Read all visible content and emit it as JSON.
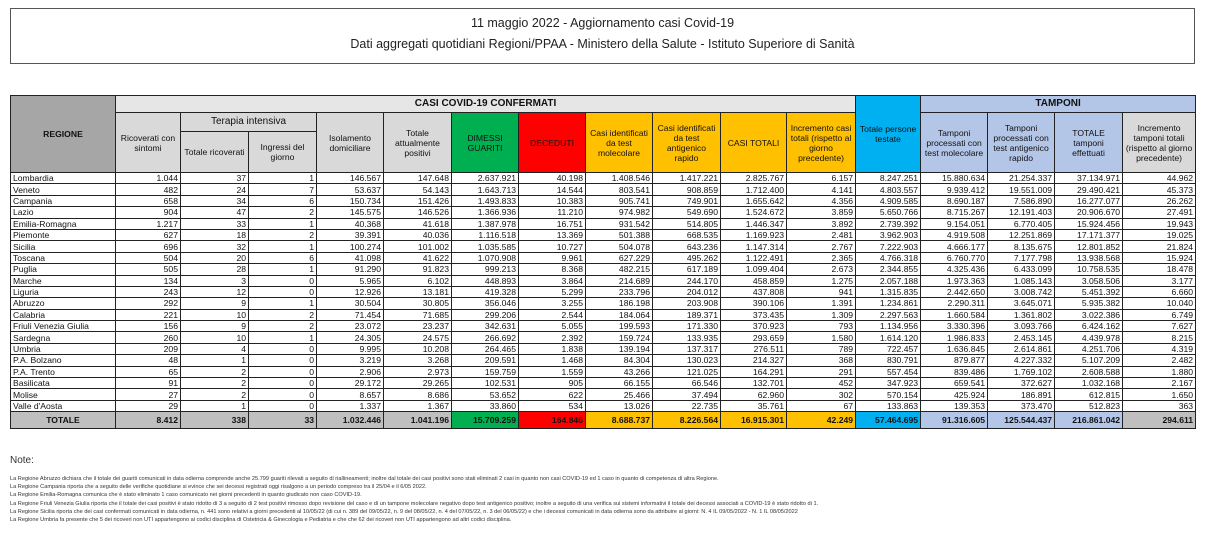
{
  "title": "11 maggio 2022 - Aggiornamento casi Covid-19",
  "subtitle": "Dati aggregati quotidiani Regioni/PPAA - Ministero della Salute - Istituto Superiore di Sanità",
  "headers": {
    "regione": "REGIONE",
    "casi_band": "CASI COVID-19 CONFERMATI",
    "tamponi_band": "TAMPONI",
    "ricoverati": "Ricoverati con sintomi",
    "terapia": "Terapia intensiva",
    "totale_ricoverati": "Totale ricoverati",
    "ingressi": "Ingressi del giorno",
    "isolamento": "Isolamento domiciliare",
    "totale_positivi": "Totale attualmente positivi",
    "dimessi": "DIMESSI GUARITI",
    "deceduti": "DECEDUTI",
    "casi_molecolare": "Casi identificati da test molecolare",
    "casi_antigenico": "Casi identificati da test antigenico rapido",
    "casi_totali": "CASI TOTALI",
    "incremento_casi": "Incremento casi totali (rispetto al giorno precedente)",
    "persone_testate": "Totale persone testate",
    "tamponi_molecolare": "Tamponi processati con test molecolare",
    "tamponi_antigenico": "Tamponi processati con test antigenico rapido",
    "totale_tamponi": "TOTALE tamponi effettuati",
    "incremento_tamponi": "Incremento tamponi totali (rispetto al giorno precedente)"
  },
  "colors": {
    "dimessi": "#00b050",
    "deceduti": "#ff0000",
    "casi": "#ffc000",
    "persone": "#00b0f0",
    "tamponi": "#b4c6e7"
  },
  "rows": [
    [
      "Lombardia",
      "1.044",
      "37",
      "1",
      "146.567",
      "147.648",
      "2.637.921",
      "40.198",
      "1.408.546",
      "1.417.221",
      "2.825.767",
      "6.157",
      "8.247.251",
      "15.880.634",
      "21.254.337",
      "37.134.971",
      "44.962"
    ],
    [
      "Veneto",
      "482",
      "24",
      "7",
      "53.637",
      "54.143",
      "1.643.713",
      "14.544",
      "803.541",
      "908.859",
      "1.712.400",
      "4.141",
      "4.803.557",
      "9.939.412",
      "19.551.009",
      "29.490.421",
      "45.373"
    ],
    [
      "Campania",
      "658",
      "34",
      "6",
      "150.734",
      "151.426",
      "1.493.833",
      "10.383",
      "905.741",
      "749.901",
      "1.655.642",
      "4.356",
      "4.909.585",
      "8.690.187",
      "7.586.890",
      "16.277.077",
      "26.262"
    ],
    [
      "Lazio",
      "904",
      "47",
      "2",
      "145.575",
      "146.526",
      "1.366.936",
      "11.210",
      "974.982",
      "549.690",
      "1.524.672",
      "3.859",
      "5.650.766",
      "8.715.267",
      "12.191.403",
      "20.906.670",
      "27.491"
    ],
    [
      "Emilia-Romagna",
      "1.217",
      "33",
      "1",
      "40.368",
      "41.618",
      "1.387.978",
      "16.751",
      "931.542",
      "514.805",
      "1.446.347",
      "3.892",
      "2.739.392",
      "9.154.051",
      "6.770.405",
      "15.924.456",
      "19.943"
    ],
    [
      "Piemonte",
      "627",
      "18",
      "2",
      "39.391",
      "40.036",
      "1.116.518",
      "13.369",
      "501.388",
      "668.535",
      "1.169.923",
      "2.481",
      "3.962.903",
      "4.919.508",
      "12.251.869",
      "17.171.377",
      "19.025"
    ],
    [
      "Sicilia",
      "696",
      "32",
      "1",
      "100.274",
      "101.002",
      "1.035.585",
      "10.727",
      "504.078",
      "643.236",
      "1.147.314",
      "2.767",
      "7.222.903",
      "4.666.177",
      "8.135.675",
      "12.801.852",
      "21.824"
    ],
    [
      "Toscana",
      "504",
      "20",
      "6",
      "41.098",
      "41.622",
      "1.070.908",
      "9.961",
      "627.229",
      "495.262",
      "1.122.491",
      "2.365",
      "4.766.318",
      "6.760.770",
      "7.177.798",
      "13.938.568",
      "15.924"
    ],
    [
      "Puglia",
      "505",
      "28",
      "1",
      "91.290",
      "91.823",
      "999.213",
      "8.368",
      "482.215",
      "617.189",
      "1.099.404",
      "2.673",
      "2.344.855",
      "4.325.436",
      "6.433.099",
      "10.758.535",
      "18.478"
    ],
    [
      "Marche",
      "134",
      "3",
      "0",
      "5.965",
      "6.102",
      "448.893",
      "3.864",
      "214.689",
      "244.170",
      "458.859",
      "1.275",
      "2.057.188",
      "1.973.363",
      "1.085.143",
      "3.058.506",
      "3.177"
    ],
    [
      "Liguria",
      "243",
      "12",
      "0",
      "12.926",
      "13.181",
      "419.328",
      "5.299",
      "233.796",
      "204.012",
      "437.808",
      "941",
      "1.315.835",
      "2.442.650",
      "3.008.742",
      "5.451.392",
      "6.660"
    ],
    [
      "Abruzzo",
      "292",
      "9",
      "1",
      "30.504",
      "30.805",
      "356.046",
      "3.255",
      "186.198",
      "203.908",
      "390.106",
      "1.391",
      "1.234.861",
      "2.290.311",
      "3.645.071",
      "5.935.382",
      "10.040"
    ],
    [
      "Calabria",
      "221",
      "10",
      "2",
      "71.454",
      "71.685",
      "299.206",
      "2.544",
      "184.064",
      "189.371",
      "373.435",
      "1.309",
      "2.297.563",
      "1.660.584",
      "1.361.802",
      "3.022.386",
      "6.749"
    ],
    [
      "Friuli Venezia Giulia",
      "156",
      "9",
      "2",
      "23.072",
      "23.237",
      "342.631",
      "5.055",
      "199.593",
      "171.330",
      "370.923",
      "793",
      "1.134.956",
      "3.330.396",
      "3.093.766",
      "6.424.162",
      "7.627"
    ],
    [
      "Sardegna",
      "260",
      "10",
      "1",
      "24.305",
      "24.575",
      "266.692",
      "2.392",
      "159.724",
      "133.935",
      "293.659",
      "1.580",
      "1.614.120",
      "1.986.833",
      "2.453.145",
      "4.439.978",
      "8.215"
    ],
    [
      "Umbria",
      "209",
      "4",
      "0",
      "9.995",
      "10.208",
      "264.465",
      "1.838",
      "139.194",
      "137.317",
      "276.511",
      "789",
      "722.457",
      "1.636.845",
      "2.614.861",
      "4.251.706",
      "4.319"
    ],
    [
      "P.A. Bolzano",
      "48",
      "1",
      "0",
      "3.219",
      "3.268",
      "209.591",
      "1.468",
      "84.304",
      "130.023",
      "214.327",
      "368",
      "830.791",
      "879.877",
      "4.227.332",
      "5.107.209",
      "2.482"
    ],
    [
      "P.A. Trento",
      "65",
      "2",
      "0",
      "2.906",
      "2.973",
      "159.759",
      "1.559",
      "43.266",
      "121.025",
      "164.291",
      "291",
      "557.454",
      "839.486",
      "1.769.102",
      "2.608.588",
      "1.880"
    ],
    [
      "Basilicata",
      "91",
      "2",
      "0",
      "29.172",
      "29.265",
      "102.531",
      "905",
      "66.155",
      "66.546",
      "132.701",
      "452",
      "347.923",
      "659.541",
      "372.627",
      "1.032.168",
      "2.167"
    ],
    [
      "Molise",
      "27",
      "2",
      "0",
      "8.657",
      "8.686",
      "53.652",
      "622",
      "25.466",
      "37.494",
      "62.960",
      "302",
      "570.154",
      "425.924",
      "186.891",
      "612.815",
      "1.650"
    ],
    [
      "Valle d'Aosta",
      "29",
      "1",
      "0",
      "1.337",
      "1.367",
      "33.860",
      "534",
      "13.026",
      "22.735",
      "35.761",
      "67",
      "133.863",
      "139.353",
      "373.470",
      "512.823",
      "363"
    ]
  ],
  "totale": [
    "TOTALE",
    "8.412",
    "338",
    "33",
    "1.032.446",
    "1.041.196",
    "15.709.259",
    "164.846",
    "8.688.737",
    "8.226.564",
    "16.915.301",
    "42.249",
    "57.464.695",
    "91.316.605",
    "125.544.437",
    "216.861.042",
    "294.611"
  ],
  "notes": {
    "title": "Note:",
    "items": [
      "La Regione Abruzzo dichiara che il totale dei guariti comunicati in data odierna comprende anche 25.799 guariti rilevati a seguito di riallineamenti; inoltre dal totale dei casi positivi sono stati eliminati 2 casi in quanto non casi COVID-19 ed 1 caso in quanto di competenza di altra Regione.",
      "La Regione Campania riporta che a seguito delle verifiche quotidiane si evince che sei decessi registrati oggi risalgono a un periodo compreso tra il 25/04 e il 6/05 2022.",
      "La Regione Emilia-Romagna  comunica che è stato eliminato 1 caso comunicato nei giorni precedenti in quanto giudicato non caso COVID-19.",
      "La Regione Friuli Venezia Giulia riporta che il totale dei casi positivi è stato ridotto di 3 a seguito di 2 test positivi rimosso dopo revisione del caso e di un tampone molecolare negativo dopo test antigenico positivo; inoltre a seguito di una verifica sui sistemi informativi il totale dei decessi associati a COVID-19 è stato ridotto di 1.",
      "La Regione Sicilia riporta che dei casi confermati comunicati in data odierna, n. 441 sono relativi a giorni precedenti al 10/05/22 (di cui n. 389 del 09/05/22, n. 9 del 08/05/22, n. 4 del 07/05/22, n. 3 del 06/05/22) e che i decessi comunicati in data odierna sono da attribuire ai giorni: N. 4 IL 09/05/2022 - N. 1 IL 08/05/2022",
      "La Regione Umbria fa presente che 5 dei ricoveri non UTI appartengono ai codici disciplina di Ostetricia & Ginecologia e Pediatria e che che 62 dei ricoveri non UTI appartengono ad altri codici disciplina."
    ]
  }
}
